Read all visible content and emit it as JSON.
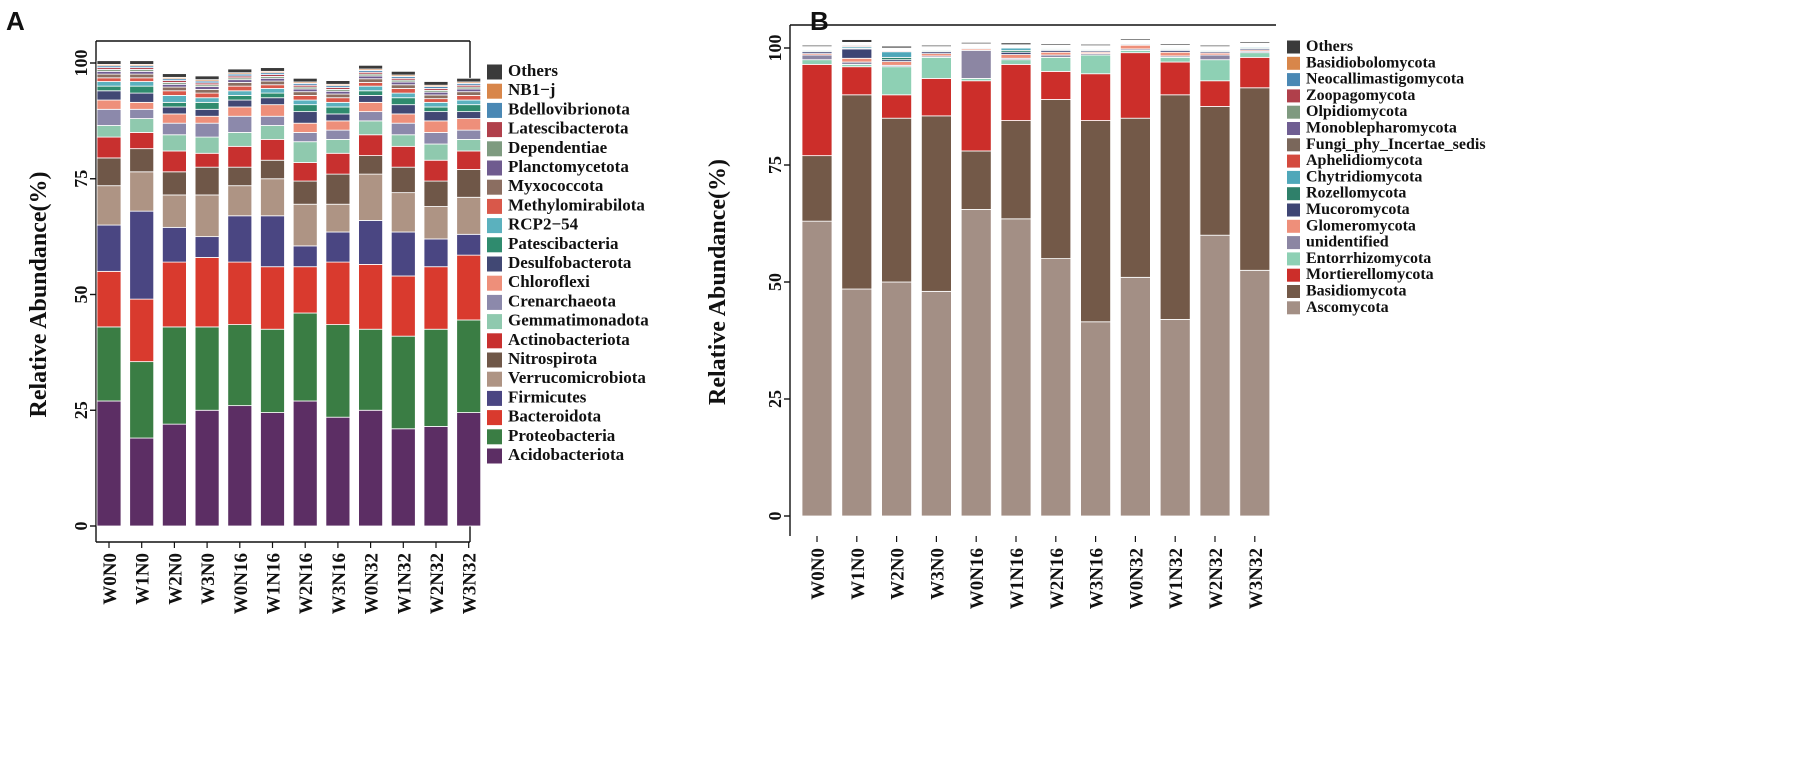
{
  "colors": {
    "bacteria": {
      "Acidobacteriota": "#5C2E64",
      "Proteobacteria": "#3A7D44",
      "Bacteroidota": "#D93A2E",
      "Firmicutes": "#4A4682",
      "Verrucomicrobiota": "#AE9484",
      "Nitrospirota": "#6F5748",
      "Actinobacteriota": "#C8302F",
      "Gemmatimonadota": "#8FC9AE",
      "Crenarchaeota": "#8C89AB",
      "Chloroflexi": "#EE8F7A",
      "Desulfobacterota": "#414874",
      "Patescibacteria": "#2F8B6E",
      "RCP2−54": "#5BB1BE",
      "Methylomirabilota": "#D9584A",
      "Myxococcota": "#8B6E61",
      "Planctomycetota": "#6F5B8F",
      "Dependentiae": "#7E9B80",
      "Latescibacterota": "#B0404B",
      "Bdellovibrionota": "#4A88B4",
      "NB1−j": "#D8864A",
      "Others": "#3A3A3A"
    },
    "fungi": {
      "Ascomycota": "#A38F85",
      "Basidiomycota": "#735948",
      "Mortierellomycota": "#CC2E2A",
      "Entorrhizomycota": "#8ED0B4",
      "unidentified": "#8C86A3",
      "Glomeromycota": "#EE8F7A",
      "Mucoromycota": "#3E4574",
      "Rozellomycota": "#2F806A",
      "Chytridiomycota": "#4FA7B9",
      "Aphelidiomycota": "#D44A3E",
      "Fungi_phy_Incertae_sedis": "#7A675B",
      "Monoblepharomycota": "#6F5E92",
      "Olpidiomycota": "#7F9A80",
      "Zoopagomycota": "#B0404B",
      "Neocallimastigomycota": "#4A88B4",
      "Basidiobolomycota": "#D8864A",
      "Others": "#3A3A3A"
    }
  },
  "chart_data": [
    {
      "panel": "A",
      "type": "bar",
      "stacked": true,
      "title": "",
      "xlabel": "",
      "ylabel": "Relative Abundance(%)",
      "ylim": [
        0,
        100
      ],
      "yticks": [
        0,
        25,
        50,
        75,
        100
      ],
      "grid": false,
      "legend_position": "right",
      "categories": [
        "W0N0",
        "W1N0",
        "W2N0",
        "W3N0",
        "W0N16",
        "W1N16",
        "W2N16",
        "W3N16",
        "W0N32",
        "W1N32",
        "W2N32",
        "W3N32"
      ],
      "legend": [
        "Others",
        "NB1−j",
        "Bdellovibrionota",
        "Latescibacterota",
        "Dependentiae",
        "Planctomycetota",
        "Myxococcota",
        "Methylomirabilota",
        "RCP2−54",
        "Patescibacteria",
        "Desulfobacterota",
        "Chloroflexi",
        "Crenarchaeota",
        "Gemmatimonadota",
        "Actinobacteriota",
        "Nitrospirota",
        "Verrucomicrobiota",
        "Firmicutes",
        "Bacteroidota",
        "Proteobacteria",
        "Acidobacteriota"
      ],
      "series": [
        {
          "name": "Acidobacteriota",
          "values": [
            27.0,
            19.0,
            22.0,
            25.0,
            26.0,
            24.5,
            27.0,
            23.5,
            25.0,
            21.0,
            21.5,
            24.5
          ]
        },
        {
          "name": "Proteobacteria",
          "values": [
            16.0,
            16.5,
            21.0,
            18.0,
            17.5,
            18.0,
            19.0,
            20.0,
            17.5,
            20.0,
            21.0,
            20.0
          ]
        },
        {
          "name": "Bacteroidota",
          "values": [
            12.0,
            13.5,
            14.0,
            15.0,
            13.5,
            13.5,
            10.0,
            13.5,
            14.0,
            13.0,
            13.5,
            14.0
          ]
        },
        {
          "name": "Firmicutes",
          "values": [
            10.0,
            19.0,
            7.5,
            4.5,
            10.0,
            11.0,
            4.5,
            6.5,
            9.5,
            9.5,
            6.0,
            4.5
          ]
        },
        {
          "name": "Verrucomicrobiota",
          "values": [
            8.5,
            8.5,
            7.0,
            9.0,
            6.5,
            8.0,
            9.0,
            6.0,
            10.0,
            8.5,
            7.0,
            8.0
          ]
        },
        {
          "name": "Nitrospirota",
          "values": [
            6.0,
            5.0,
            5.0,
            6.0,
            4.0,
            4.0,
            5.0,
            6.5,
            4.0,
            5.5,
            5.5,
            6.0
          ]
        },
        {
          "name": "Actinobacteriota",
          "values": [
            4.5,
            3.5,
            4.5,
            3.0,
            4.5,
            4.5,
            4.0,
            4.5,
            4.5,
            4.5,
            4.5,
            4.0
          ]
        },
        {
          "name": "Gemmatimonadota",
          "values": [
            2.5,
            3.0,
            3.5,
            3.5,
            3.0,
            3.0,
            4.5,
            3.0,
            3.0,
            2.5,
            3.5,
            2.5
          ]
        },
        {
          "name": "Crenarchaeota",
          "values": [
            3.5,
            2.0,
            2.5,
            3.0,
            3.5,
            2.0,
            2.0,
            2.0,
            2.0,
            2.5,
            2.5,
            2.0
          ]
        },
        {
          "name": "Chloroflexi",
          "values": [
            2.0,
            1.5,
            2.0,
            1.5,
            2.0,
            2.5,
            2.0,
            2.0,
            2.0,
            2.0,
            2.5,
            2.5
          ]
        },
        {
          "name": "Desulfobacterota",
          "values": [
            2.0,
            2.0,
            1.5,
            1.5,
            1.5,
            1.5,
            2.5,
            1.5,
            1.5,
            2.0,
            2.0,
            1.5
          ]
        },
        {
          "name": "Patescibacteria",
          "values": [
            1.0,
            1.5,
            1.0,
            1.5,
            1.0,
            1.0,
            1.5,
            1.5,
            1.0,
            1.5,
            1.0,
            1.5
          ]
        },
        {
          "name": "RCP2−54",
          "values": [
            1.0,
            1.0,
            1.5,
            1.0,
            1.0,
            1.0,
            1.0,
            1.0,
            1.0,
            1.0,
            1.0,
            1.0
          ]
        },
        {
          "name": "Methylomirabilota",
          "values": [
            0.8,
            0.8,
            1.0,
            1.0,
            1.0,
            0.8,
            1.0,
            1.0,
            0.8,
            1.0,
            0.8,
            1.0
          ]
        },
        {
          "name": "Myxococcota",
          "values": [
            0.8,
            0.8,
            0.8,
            0.8,
            0.8,
            0.8,
            0.8,
            0.8,
            0.8,
            0.8,
            0.8,
            0.8
          ]
        },
        {
          "name": "Planctomycetota",
          "values": [
            0.6,
            0.6,
            0.6,
            0.6,
            0.6,
            0.6,
            0.6,
            0.6,
            0.6,
            0.6,
            0.6,
            0.6
          ]
        },
        {
          "name": "Dependentiae",
          "values": [
            0.4,
            0.4,
            0.4,
            0.4,
            0.4,
            0.4,
            0.4,
            0.4,
            0.4,
            0.4,
            0.4,
            0.4
          ]
        },
        {
          "name": "Latescibacterota",
          "values": [
            0.4,
            0.4,
            0.4,
            0.4,
            0.4,
            0.4,
            0.4,
            0.4,
            0.4,
            0.4,
            0.4,
            0.4
          ]
        },
        {
          "name": "Bdellovibrionota",
          "values": [
            0.4,
            0.4,
            0.4,
            0.4,
            0.4,
            0.4,
            0.4,
            0.4,
            0.4,
            0.4,
            0.4,
            0.4
          ]
        },
        {
          "name": "NB1−j",
          "values": [
            0.3,
            0.3,
            0.3,
            0.3,
            0.3,
            0.3,
            0.3,
            0.3,
            0.3,
            0.3,
            0.3,
            0.3
          ]
        },
        {
          "name": "Others",
          "values": [
            0.8,
            0.8,
            0.8,
            0.8,
            0.8,
            0.8,
            0.8,
            0.8,
            0.8,
            0.8,
            0.8,
            0.8
          ]
        }
      ]
    },
    {
      "panel": "B",
      "type": "bar",
      "stacked": true,
      "title": "",
      "xlabel": "",
      "ylabel": "Relative Abundance(%)",
      "ylim": [
        0,
        100
      ],
      "yticks": [
        0,
        25,
        50,
        75,
        100
      ],
      "grid": false,
      "legend_position": "right",
      "categories": [
        "W0N0",
        "W1N0",
        "W2N0",
        "W3N0",
        "W0N16",
        "W1N16",
        "W2N16",
        "W3N16",
        "W0N32",
        "W1N32",
        "W2N32",
        "W3N32"
      ],
      "legend": [
        "Others",
        "Basidiobolomycota",
        "Neocallimastigomycota",
        "Zoopagomycota",
        "Olpidiomycota",
        "Monoblepharomycota",
        "Fungi_phy_Incertae_sedis",
        "Aphelidiomycota",
        "Chytridiomycota",
        "Rozellomycota",
        "Mucoromycota",
        "Glomeromycota",
        "unidentified",
        "Entorrhizomycota",
        "Mortierellomycota",
        "Basidiomycota",
        "Ascomycota"
      ],
      "series": [
        {
          "name": "Ascomycota",
          "values": [
            63.0,
            48.5,
            50.0,
            48.0,
            65.5,
            63.5,
            55.0,
            41.5,
            51.0,
            42.0,
            60.0,
            52.5
          ]
        },
        {
          "name": "Basidiomycota",
          "values": [
            14.0,
            41.5,
            35.0,
            37.5,
            12.5,
            21.0,
            34.0,
            43.0,
            34.0,
            48.0,
            27.5,
            39.0
          ]
        },
        {
          "name": "Mortierellomycota",
          "values": [
            19.5,
            6.0,
            5.0,
            8.0,
            15.0,
            12.0,
            6.0,
            10.0,
            14.0,
            7.0,
            5.5,
            6.5
          ]
        },
        {
          "name": "Entorrhizomycota",
          "values": [
            1.0,
            0.5,
            6.0,
            4.5,
            0.5,
            1.0,
            3.0,
            4.0,
            0.5,
            1.0,
            4.5,
            1.0
          ]
        },
        {
          "name": "unidentified",
          "values": [
            1.0,
            0.5,
            0.3,
            0.3,
            6.0,
            0.3,
            0.5,
            0.3,
            0.3,
            0.3,
            1.0,
            0.3
          ]
        },
        {
          "name": "Glomeromycota",
          "values": [
            0.3,
            0.8,
            0.8,
            0.5,
            0.3,
            0.8,
            0.6,
            0.3,
            0.8,
            0.8,
            0.4,
            0.3
          ]
        },
        {
          "name": "Mucoromycota",
          "values": [
            0.4,
            2.0,
            0.4,
            0.4,
            0.2,
            0.5,
            0.4,
            0.3,
            0.2,
            0.4,
            0.3,
            0.3
          ]
        },
        {
          "name": "Rozellomycota",
          "values": [
            0.2,
            0.2,
            0.5,
            0.2,
            0.1,
            0.4,
            0.2,
            0.2,
            0.1,
            0.2,
            0.2,
            0.2
          ]
        },
        {
          "name": "Chytridiomycota",
          "values": [
            0.2,
            0.3,
            1.2,
            0.2,
            0.1,
            0.5,
            0.2,
            0.2,
            0.1,
            0.2,
            0.2,
            0.2
          ]
        },
        {
          "name": "Aphelidiomycota",
          "values": [
            0.1,
            0.2,
            0.2,
            0.1,
            0.1,
            0.1,
            0.1,
            0.1,
            0.1,
            0.1,
            0.1,
            0.1
          ]
        },
        {
          "name": "Fungi_phy_Incertae_sedis",
          "values": [
            0.1,
            0.2,
            0.1,
            0.1,
            0.1,
            0.1,
            0.1,
            0.1,
            0.1,
            0.1,
            0.1,
            0.1
          ]
        },
        {
          "name": "Monoblepharomycota",
          "values": [
            0.1,
            0.1,
            0.1,
            0.1,
            0.1,
            0.1,
            0.1,
            0.1,
            0.1,
            0.1,
            0.1,
            0.1
          ]
        },
        {
          "name": "Olpidiomycota",
          "values": [
            0.1,
            0.1,
            0.1,
            0.1,
            0.1,
            0.1,
            0.1,
            0.1,
            0.1,
            0.1,
            0.1,
            0.1
          ]
        },
        {
          "name": "Zoopagomycota",
          "values": [
            0.1,
            0.1,
            0.1,
            0.1,
            0.1,
            0.1,
            0.1,
            0.1,
            0.1,
            0.1,
            0.1,
            0.1
          ]
        },
        {
          "name": "Neocallimastigomycota",
          "values": [
            0.1,
            0.1,
            0.1,
            0.1,
            0.1,
            0.1,
            0.1,
            0.1,
            0.1,
            0.1,
            0.1,
            0.1
          ]
        },
        {
          "name": "Basidiobolomycota",
          "values": [
            0.1,
            0.1,
            0.1,
            0.1,
            0.1,
            0.1,
            0.1,
            0.1,
            0.1,
            0.1,
            0.1,
            0.1
          ]
        },
        {
          "name": "Others",
          "values": [
            0.3,
            0.6,
            0.4,
            0.3,
            0.3,
            0.4,
            0.3,
            0.3,
            0.3,
            0.3,
            0.3,
            0.3
          ]
        }
      ]
    }
  ]
}
